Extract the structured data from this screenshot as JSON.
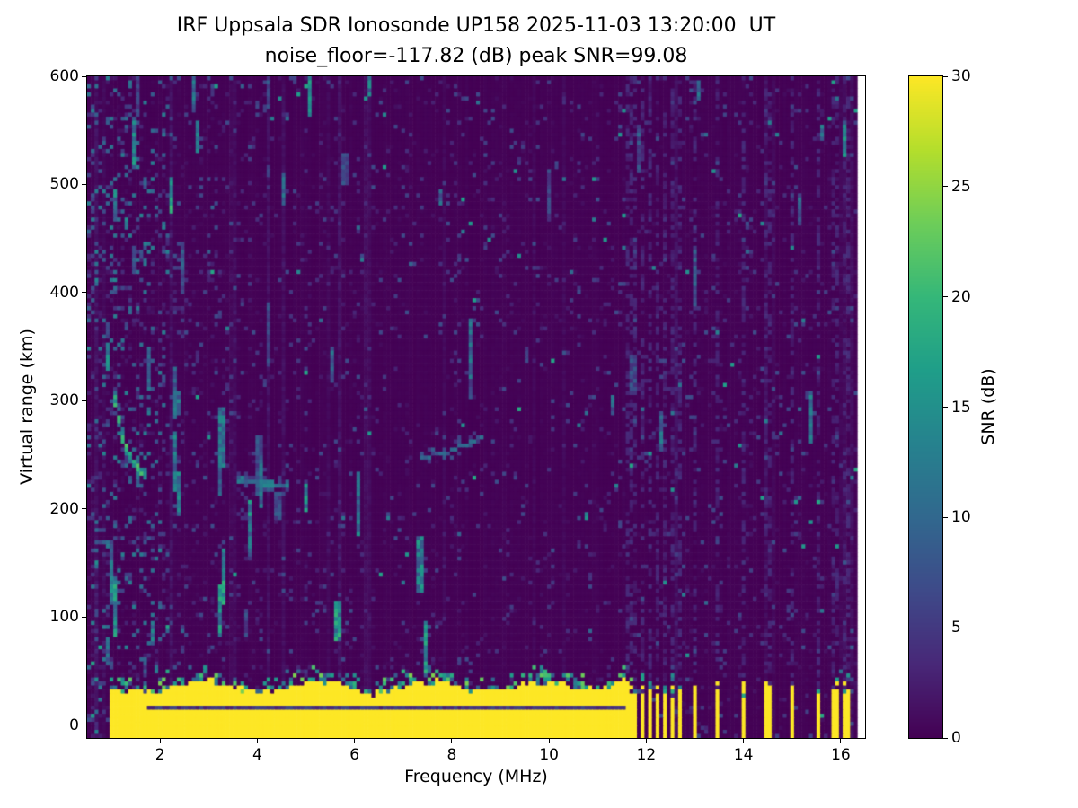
{
  "chart_data": {
    "type": "heatmap",
    "title": "IRF Uppsala SDR Ionosonde UP158 2025-11-03 13:20:00  UT",
    "subtitle": "noise_floor=-117.82 (dB) peak SNR=99.08",
    "station": "UP158",
    "timestamp_ut": "2025-11-03 13:20:00",
    "noise_floor_db": -117.82,
    "peak_snr_db": 99.08,
    "xlabel": "Frequency (MHz)",
    "ylabel": "Virtual range (km)",
    "xlim": [
      0.5,
      16.5
    ],
    "ylim": [
      -12,
      600
    ],
    "xticks": [
      2,
      4,
      6,
      8,
      10,
      12,
      14,
      16
    ],
    "yticks": [
      0,
      100,
      200,
      300,
      400,
      500,
      600
    ],
    "grid": false,
    "background": "#ffffff",
    "colorbar": {
      "label": "SNR (dB)",
      "ticks": [
        0,
        5,
        10,
        15,
        20,
        25,
        30
      ],
      "vmin": 0,
      "vmax": 30,
      "colormap": "viridis",
      "position": "right"
    },
    "data_extent": {
      "f_min": 0.55,
      "f_max": 16.37
    },
    "ground_pulse": {
      "f_start": 0.95,
      "f_end": 11.55,
      "top_km": 32,
      "gap_km": 15,
      "snr": 30
    },
    "interference_bars": {
      "freqs": [
        11.66,
        11.8,
        11.94,
        12.08,
        12.22,
        12.37,
        12.52,
        12.72,
        12.97,
        13.48,
        14.02,
        14.5,
        15.02,
        15.52,
        15.88,
        16.12
      ],
      "top_km": 34,
      "snr": 30
    },
    "echo_traces": [
      {
        "name": "low-frequency descending trace",
        "points": [
          [
            1.02,
            318
          ],
          [
            1.1,
            293
          ],
          [
            1.2,
            270
          ],
          [
            1.32,
            253
          ],
          [
            1.5,
            240
          ],
          [
            1.72,
            231
          ]
        ],
        "snr": 18,
        "thickness_km": 9
      },
      {
        "name": "flat trace near 220 km",
        "points": [
          [
            3.55,
            228
          ],
          [
            4.0,
            224
          ],
          [
            4.65,
            221
          ]
        ],
        "snr": 12,
        "thickness_km": 5
      },
      {
        "name": "rising trace near 260 km",
        "points": [
          [
            7.35,
            247
          ],
          [
            7.9,
            252
          ],
          [
            8.3,
            260
          ],
          [
            8.65,
            268
          ]
        ],
        "snr": 10,
        "thickness_km": 4
      }
    ],
    "noise": {
      "seed": 77,
      "speckle_prob_below_2_2MHz": 0.3,
      "speckle_prob_below_4_2MHz": 0.17,
      "speckle_prob_else": 0.1,
      "vertical_streak_count": 60
    }
  }
}
